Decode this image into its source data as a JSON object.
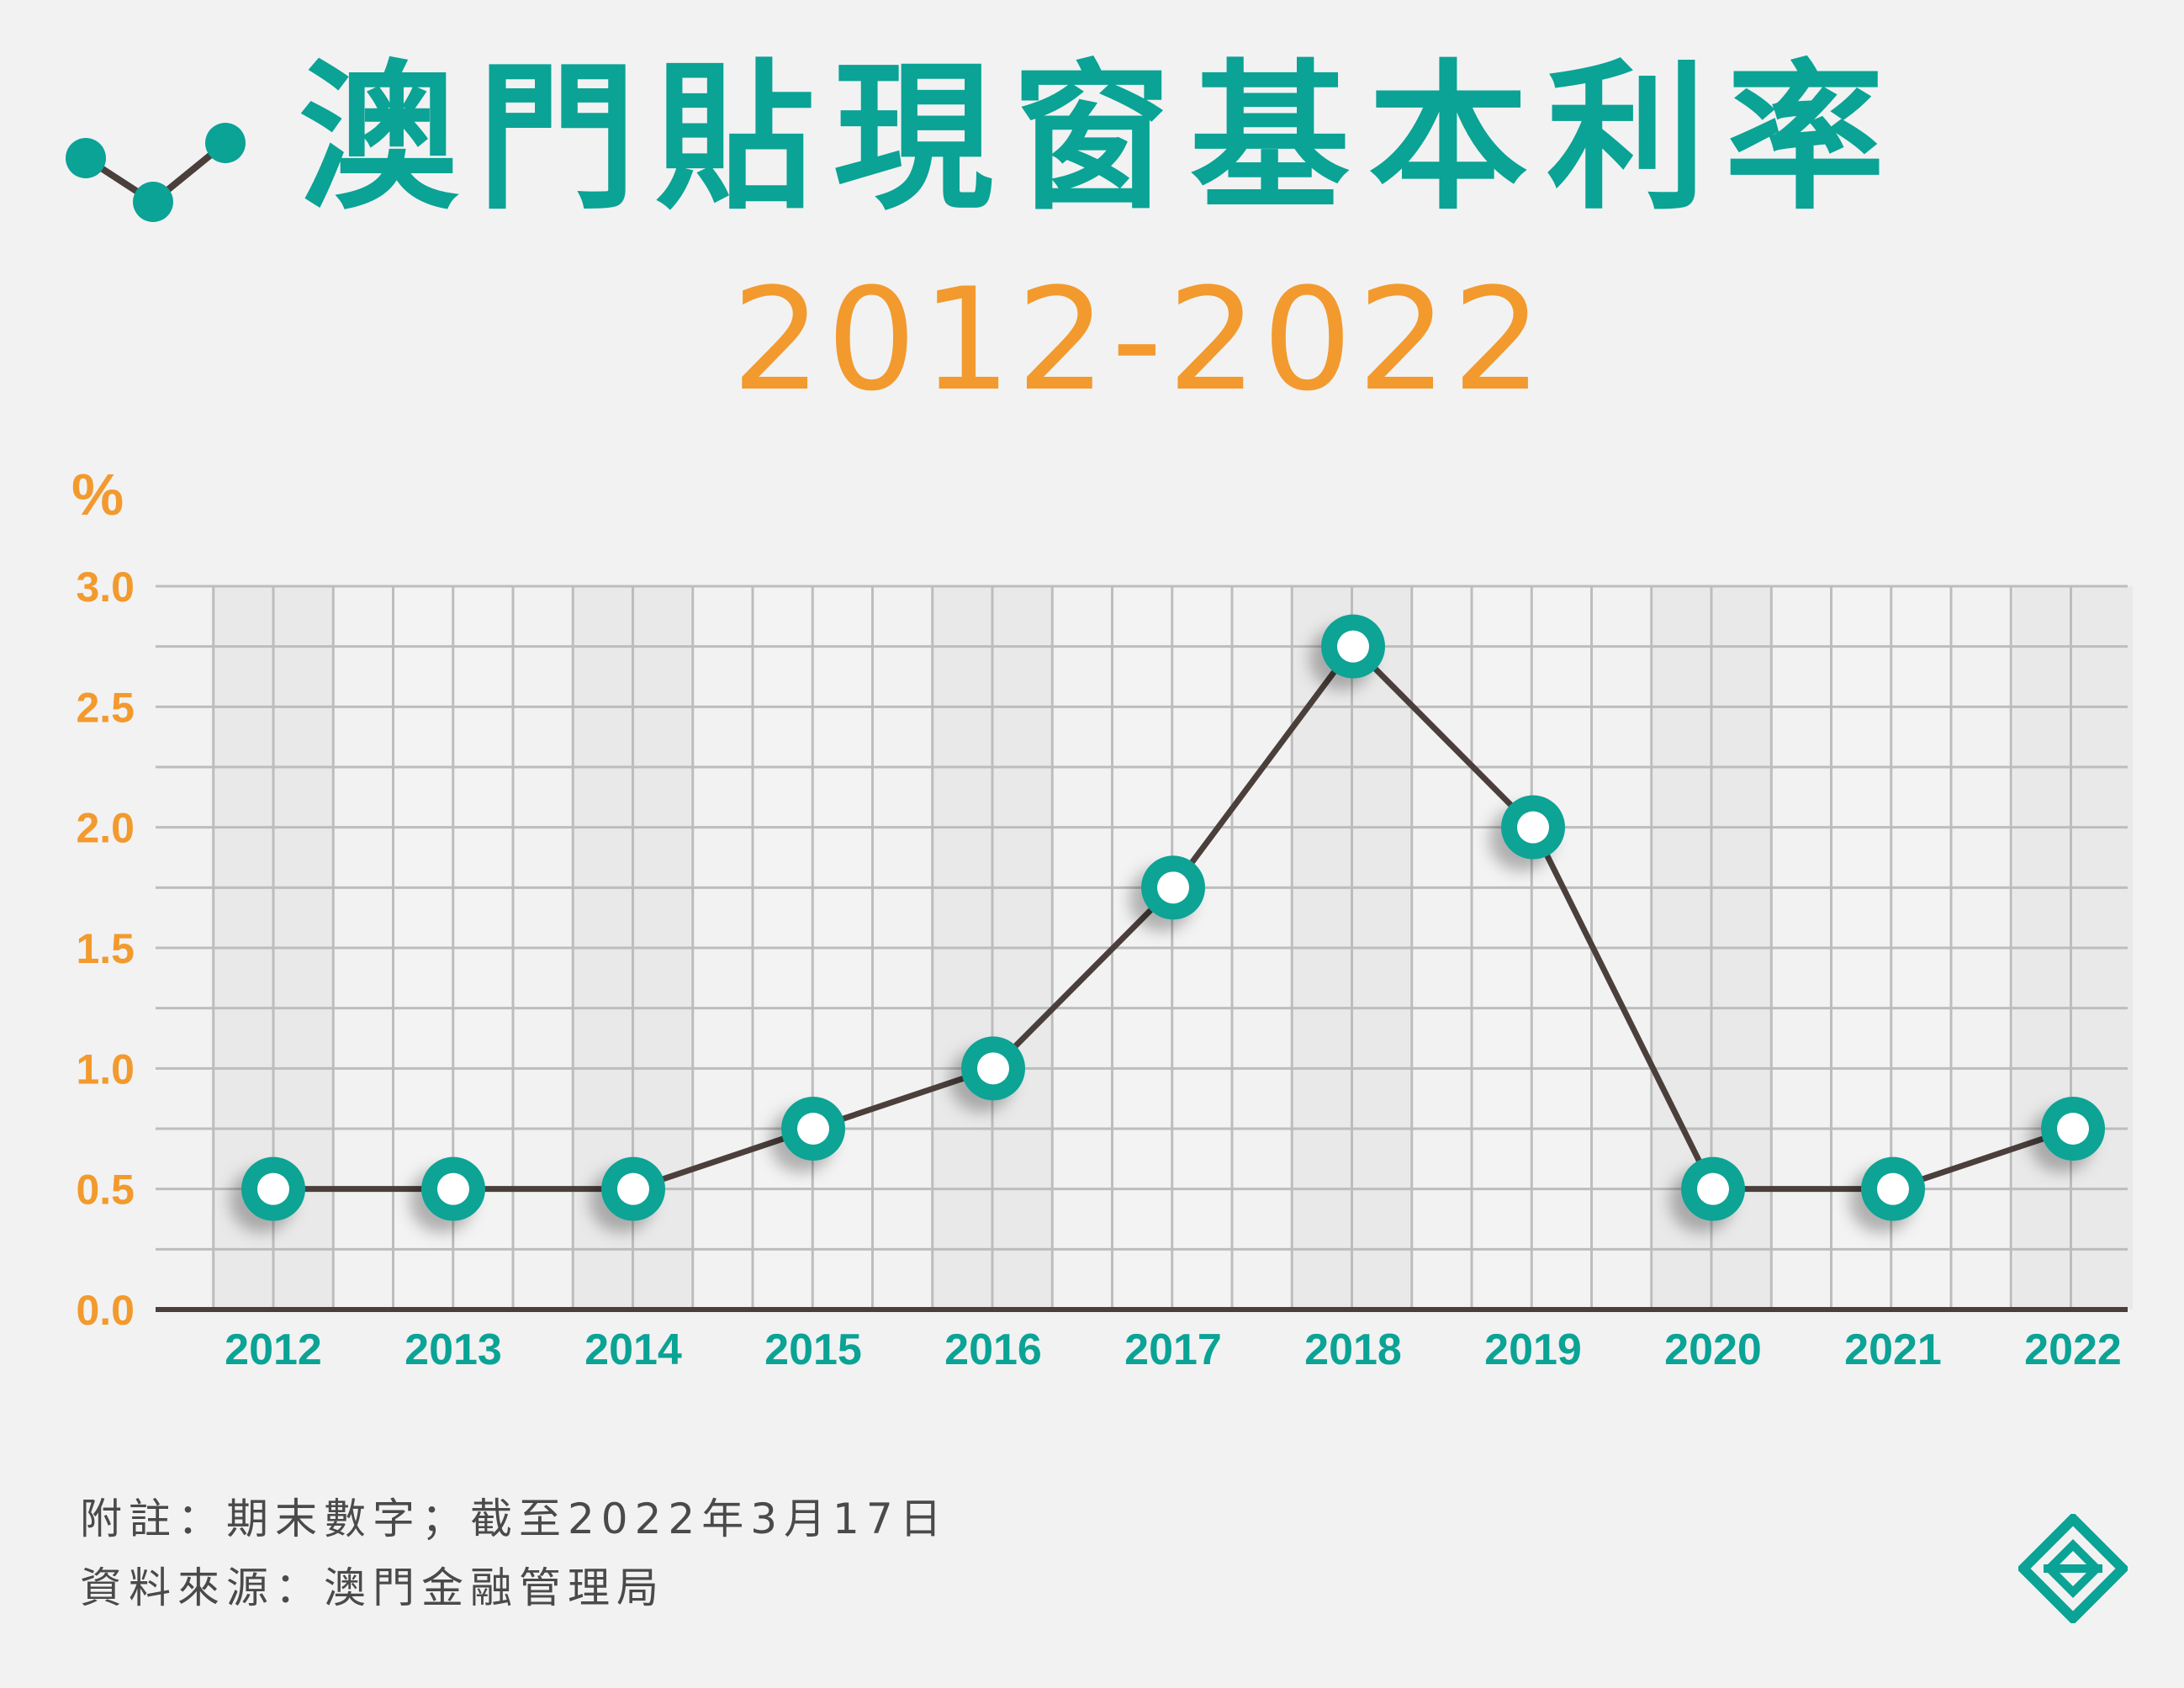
{
  "header": {
    "title": "澳門貼現窗基本利率",
    "subtitle": "2012-2022"
  },
  "chart_data": {
    "type": "line",
    "title": "澳門貼現窗基本利率",
    "subtitle": "2012-2022",
    "xlabel": "",
    "ylabel": "%",
    "categories": [
      "2012",
      "2013",
      "2014",
      "2015",
      "2016",
      "2017",
      "2018",
      "2019",
      "2020",
      "2021",
      "2022"
    ],
    "series": [
      {
        "values": [
          0.5,
          0.5,
          0.5,
          0.75,
          1.0,
          1.75,
          2.75,
          2.0,
          0.5,
          0.5,
          0.75
        ]
      }
    ],
    "yticks": [
      "0.0",
      "0.5",
      "1.0",
      "1.5",
      "2.0",
      "2.5",
      "3.0"
    ],
    "ylim": [
      0,
      3.0
    ],
    "grid": true,
    "legend": "none",
    "colors": {
      "line": "#4a3f3b",
      "marker_ring": "#0aa395",
      "marker_fill": "#ffffff",
      "ytick": "#f29a2e",
      "xtick": "#0aa395"
    }
  },
  "footer": {
    "note": "附註：期末數字；截至2022年3月17日",
    "source": "資料來源：澳門金融管理局"
  },
  "logo": {
    "icon": "amcm-logo-icon"
  },
  "title_icon": {
    "icon": "line-chart-icon"
  }
}
